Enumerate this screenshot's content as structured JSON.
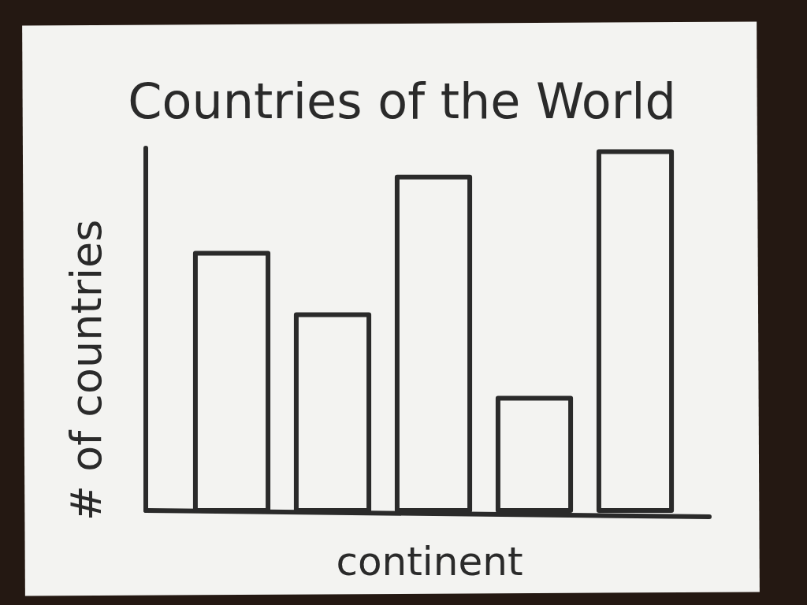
{
  "chart_data": {
    "type": "bar",
    "title": "Countries of the World",
    "x_label": "continent",
    "y_label": "# of countries",
    "categories": [
      null,
      null,
      null,
      null,
      null
    ],
    "values": [
      71,
      54,
      92,
      31,
      99
    ],
    "color": "#2a2a2a",
    "ylim": [
      0,
      100
    ],
    "yticks": [],
    "grid": false,
    "tick_labels": false
  }
}
